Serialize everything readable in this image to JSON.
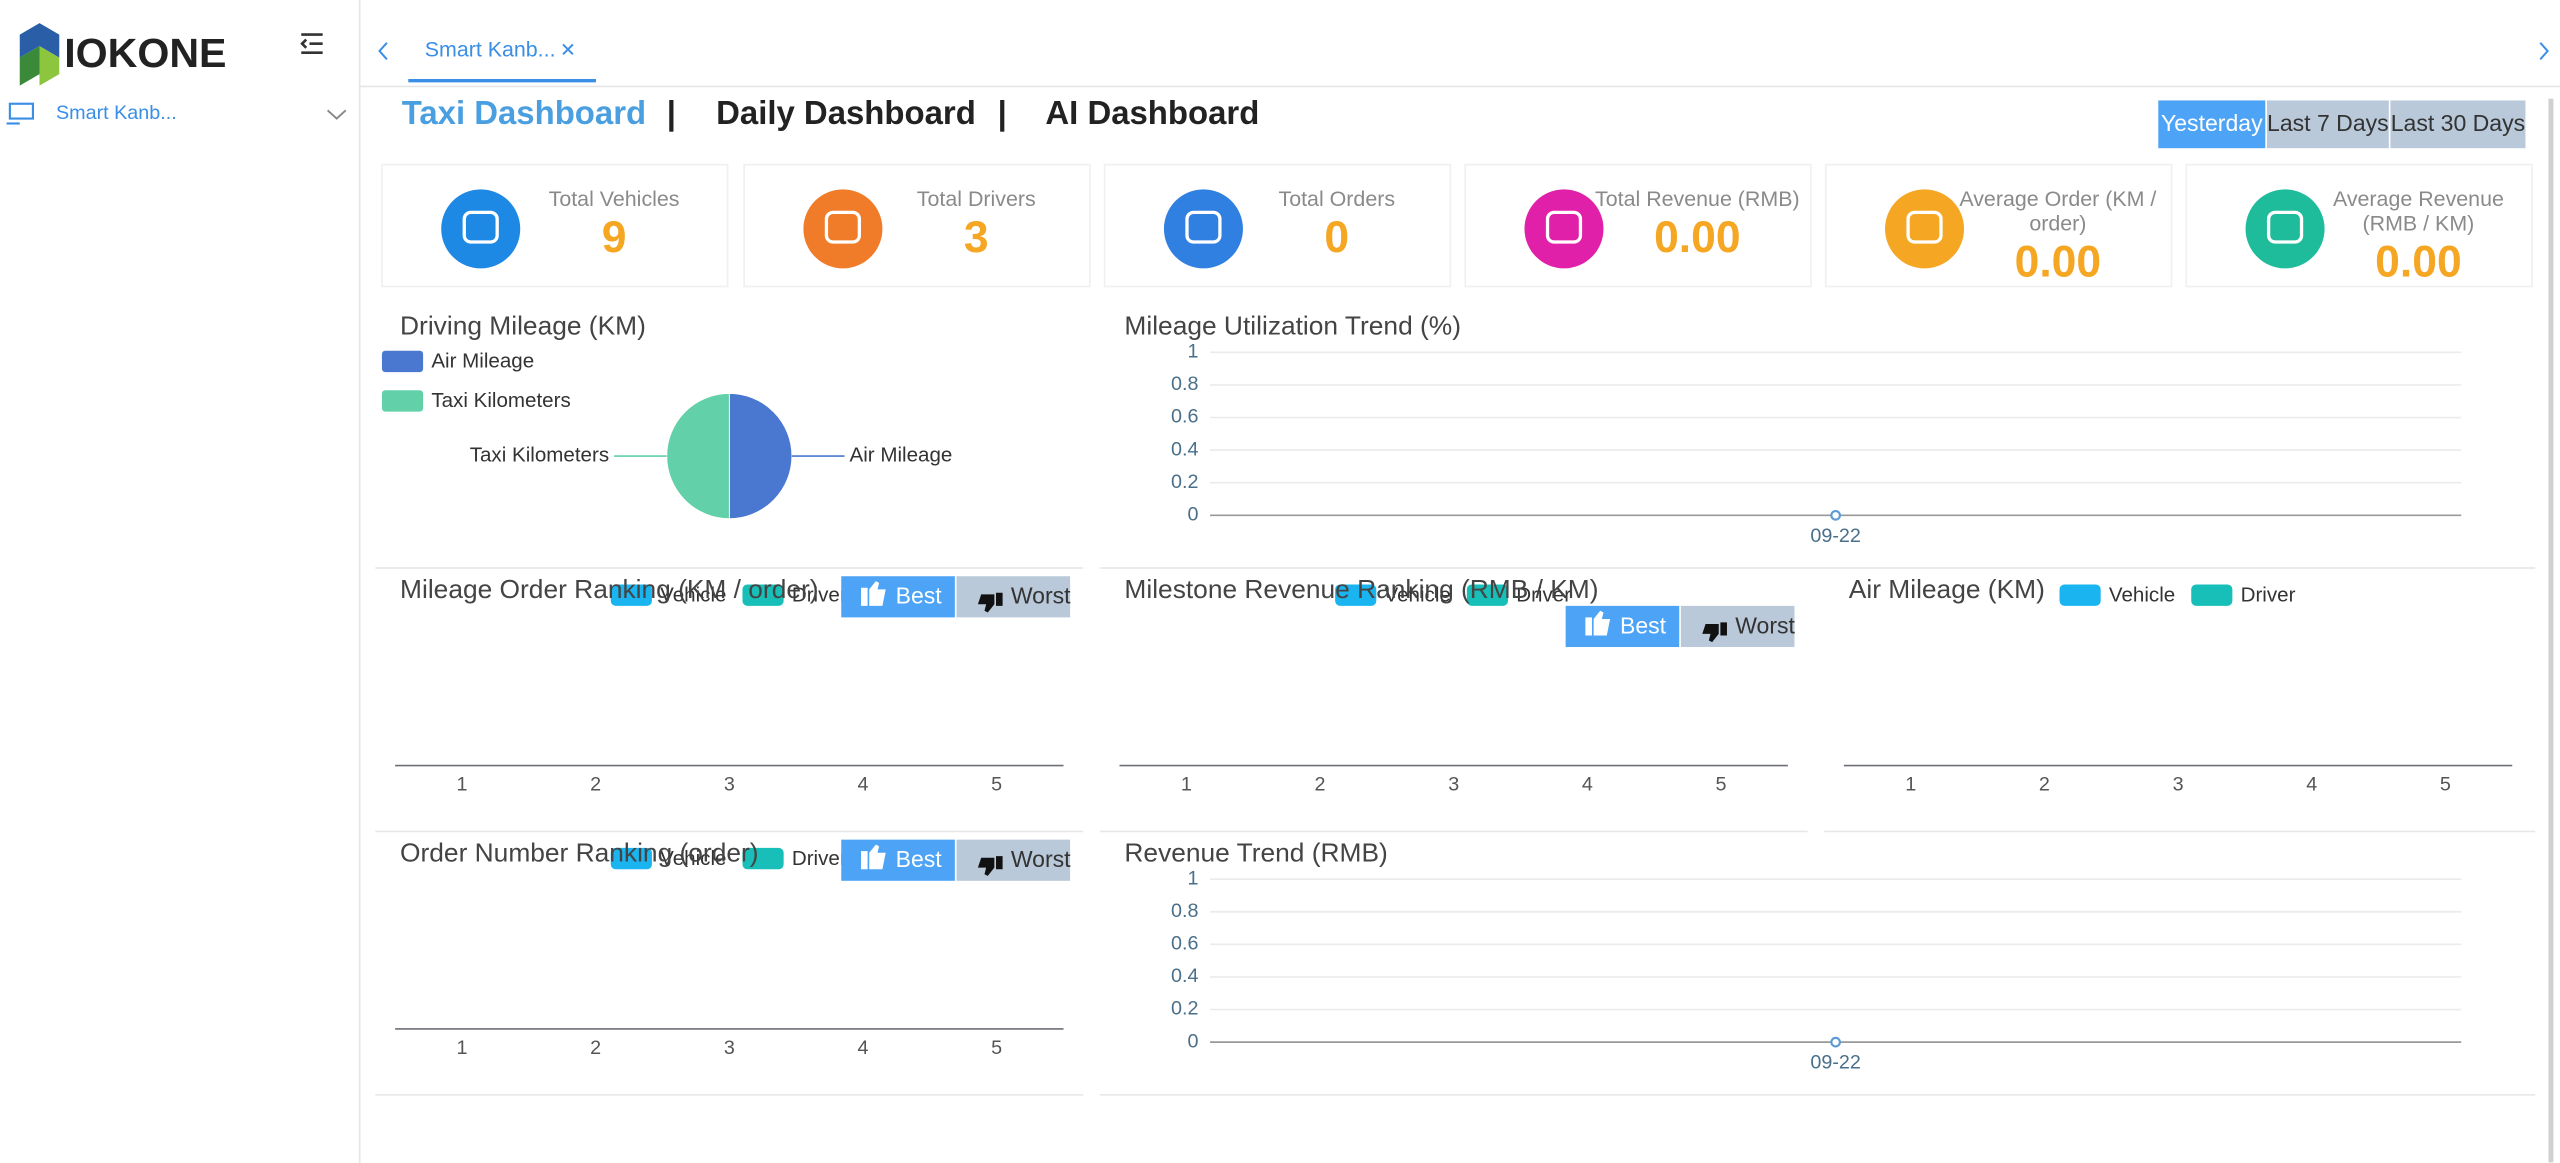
{
  "sidebar": {
    "brand": "IOKONE",
    "menu": "Smart Kanb..."
  },
  "tabs": [
    "Smart Kanb..."
  ],
  "nav": {
    "items": [
      "Taxi Dashboard",
      "Daily Dashboard",
      "AI Dashboard"
    ],
    "separator": "|"
  },
  "ranges": [
    "Yesterday",
    "Last 7 Days",
    "Last 30 Days"
  ],
  "kpis": [
    {
      "label": "Total Vehicles",
      "value": 9,
      "color": "#1e88e5"
    },
    {
      "label": "Total Drivers",
      "value": 3,
      "color": "#f07c2a"
    },
    {
      "label": "Total Orders",
      "value": 0,
      "color": "#2f80e0"
    },
    {
      "label": "Total Revenue (RMB)",
      "value": "0.00",
      "color": "#e020a8"
    },
    {
      "label": "Average Order (KM / order)",
      "value": "0.00",
      "color": "#f5a623"
    },
    {
      "label": "Average Revenue (RMB / KM)",
      "value": "0.00",
      "color": "#1fbc9c"
    }
  ],
  "chart_data": [
    {
      "type": "pie",
      "title": "Driving Mileage (KM)",
      "series": [
        {
          "name": "Air Mileage",
          "color": "#4a78d0",
          "values": [
            50
          ]
        },
        {
          "name": "Taxi Kilometers",
          "color": "#62d0a8",
          "values": [
            50
          ]
        }
      ]
    },
    {
      "type": "line",
      "title": "Mileage Utilization Trend (%)",
      "categories": [
        "09-22"
      ],
      "values": [
        0
      ],
      "color": "#5a9bd5",
      "ylim": [
        0,
        1
      ],
      "yticks": [
        0,
        0.2,
        0.4,
        0.6,
        0.8,
        1
      ],
      "grid": true
    },
    {
      "type": "bar",
      "title": "Mileage Order Ranking (KM / order)",
      "categories": [
        "1",
        "2",
        "3",
        "4",
        "5"
      ],
      "series": [
        {
          "name": "Vehicle",
          "color": "#1ab5f0",
          "values": [
            null,
            null,
            null,
            null,
            null
          ]
        },
        {
          "name": "Driver",
          "color": "#17bfb8",
          "values": [
            null,
            null,
            null,
            null,
            null
          ]
        }
      ],
      "buttons": [
        "Best",
        "Worst"
      ]
    },
    {
      "type": "bar",
      "title": "Milestone Revenue Ranking (RMB / KM)",
      "categories": [
        "1",
        "2",
        "3",
        "4",
        "5"
      ],
      "series": [
        {
          "name": "Vehicle",
          "color": "#1ab5f0",
          "values": [
            null,
            null,
            null,
            null,
            null
          ]
        },
        {
          "name": "Driver",
          "color": "#17bfb8",
          "values": [
            null,
            null,
            null,
            null,
            null
          ]
        }
      ],
      "buttons": [
        "Best",
        "Worst"
      ]
    },
    {
      "type": "bar",
      "title": "Air Mileage (KM)",
      "categories": [
        "1",
        "2",
        "3",
        "4",
        "5"
      ],
      "series": [
        {
          "name": "Vehicle",
          "color": "#1ab5f0",
          "values": [
            null,
            null,
            null,
            null,
            null
          ]
        },
        {
          "name": "Driver",
          "color": "#17bfb8",
          "values": [
            null,
            null,
            null,
            null,
            null
          ]
        }
      ]
    },
    {
      "type": "bar",
      "title": "Order Number Ranking (order)",
      "categories": [
        "1",
        "2",
        "3",
        "4",
        "5"
      ],
      "series": [
        {
          "name": "Vehicle",
          "color": "#1ab5f0",
          "values": [
            null,
            null,
            null,
            null,
            null
          ]
        },
        {
          "name": "Driver",
          "color": "#17bfb8",
          "values": [
            null,
            null,
            null,
            null,
            null
          ]
        }
      ],
      "buttons": [
        "Best",
        "Worst"
      ]
    },
    {
      "type": "line",
      "title": "Revenue Trend (RMB)",
      "categories": [
        "09-22"
      ],
      "values": [
        0
      ],
      "color": "#5a9bd5",
      "ylim": [
        0,
        1
      ],
      "yticks": [
        0,
        0.2,
        0.4,
        0.6,
        0.8,
        1
      ],
      "grid": true
    }
  ]
}
